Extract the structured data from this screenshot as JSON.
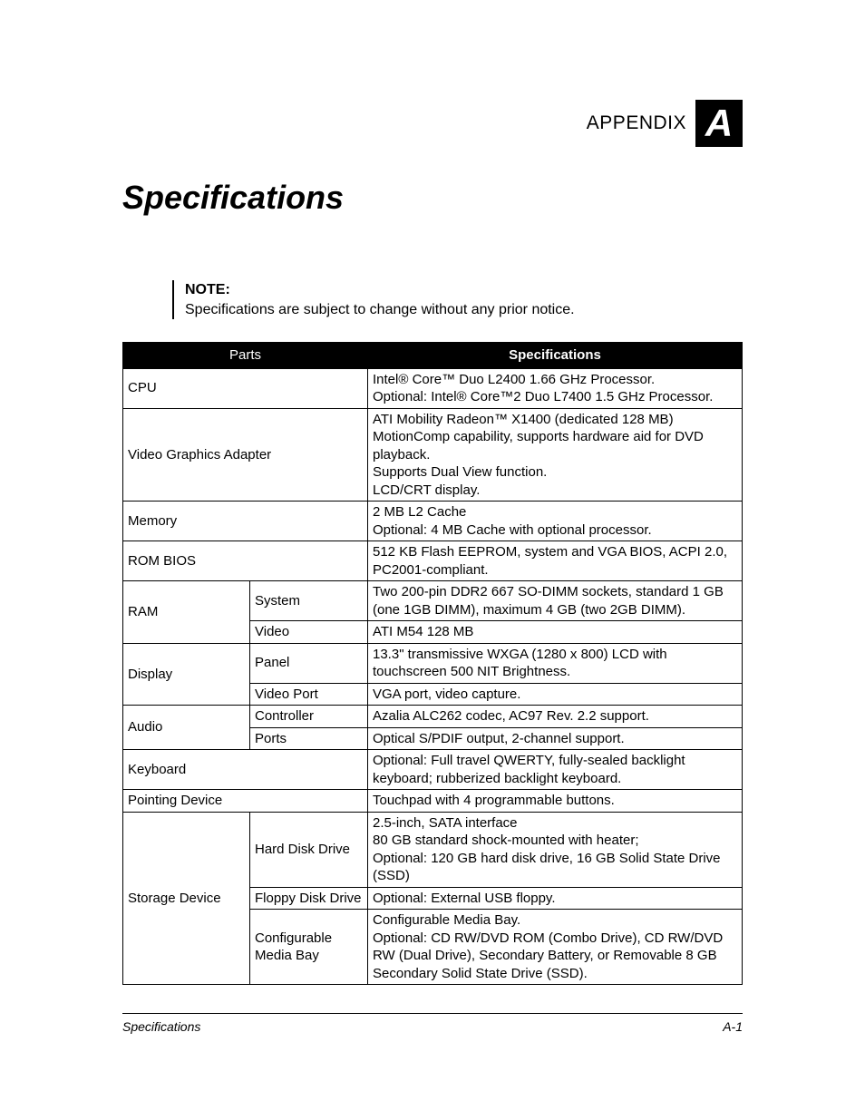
{
  "header": {
    "appendix_label": "APPENDIX",
    "appendix_letter": "A"
  },
  "title": "Specifications",
  "note": {
    "label": "NOTE:",
    "text": "Specifications are subject to change without any prior notice."
  },
  "table": {
    "headers": {
      "parts": "Parts",
      "spec": "Specifications"
    },
    "rows": {
      "cpu": {
        "label": "CPU",
        "spec": "Intel® Core™ Duo L2400 1.66 GHz Processor.\nOptional: Intel® Core™2 Duo L7400 1.5 GHz Processor."
      },
      "vga": {
        "label": "Video Graphics Adapter",
        "spec": "ATI Mobility Radeon™ X1400 (dedicated 128 MB)\nMotionComp capability, supports hardware aid for DVD playback.\nSupports Dual View function.\nLCD/CRT display."
      },
      "memory": {
        "label": "Memory",
        "spec": "2 MB L2 Cache\nOptional: 4 MB Cache with optional processor."
      },
      "rombios": {
        "label": "ROM BIOS",
        "spec": "512 KB Flash EEPROM, system and VGA BIOS, ACPI 2.0, PC2001-compliant."
      },
      "ram": {
        "label": "RAM",
        "system": {
          "label": "System",
          "spec": "Two 200-pin DDR2 667 SO-DIMM sockets, standard 1 GB (one 1GB DIMM), maximum 4 GB (two 2GB DIMM)."
        },
        "video": {
          "label": "Video",
          "spec": "ATI M54 128 MB"
        }
      },
      "display": {
        "label": "Display",
        "panel": {
          "label": "Panel",
          "spec": "13.3\" transmissive WXGA (1280 x 800) LCD with touchscreen 500 NIT Brightness."
        },
        "port": {
          "label": "Video Port",
          "spec": "VGA port, video capture."
        }
      },
      "audio": {
        "label": "Audio",
        "controller": {
          "label": "Controller",
          "spec": "Azalia ALC262 codec, AC97 Rev. 2.2 support."
        },
        "ports": {
          "label": "Ports",
          "spec": "Optical S/PDIF output, 2-channel support."
        }
      },
      "keyboard": {
        "label": "Keyboard",
        "spec": "Optional: Full travel QWERTY, fully-sealed backlight keyboard; rubberized backlight keyboard."
      },
      "pointing": {
        "label": "Pointing Device",
        "spec": "Touchpad with 4 programmable buttons."
      },
      "storage": {
        "label": "Storage Device",
        "hdd": {
          "label": "Hard Disk Drive",
          "spec": "2.5-inch, SATA interface\n80 GB standard shock-mounted with heater;\nOptional: 120 GB hard disk drive, 16 GB Solid State Drive (SSD)"
        },
        "fdd": {
          "label": "Floppy Disk Drive",
          "spec": "Optional: External USB floppy."
        },
        "media": {
          "label": "Configurable Media Bay",
          "spec": "Configurable Media Bay.\nOptional: CD RW/DVD ROM (Combo Drive), CD RW/DVD RW (Dual Drive), Secondary Battery, or Removable 8 GB Secondary Solid State Drive (SSD)."
        }
      }
    }
  },
  "footer": {
    "left": "Specifications",
    "right": "A-1"
  }
}
